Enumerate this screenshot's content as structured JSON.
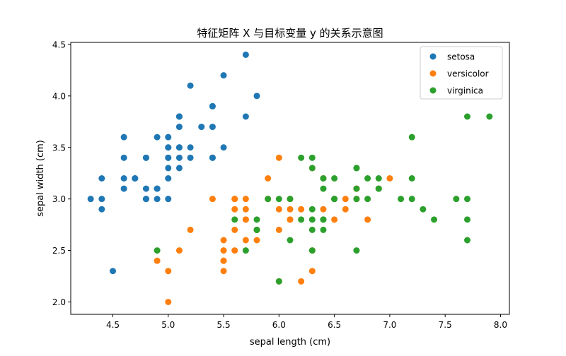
{
  "chart_data": {
    "type": "scatter",
    "title": "特征矩阵 X 与目标变量 y 的关系示意图",
    "xlabel": "sepal length (cm)",
    "ylabel": "sepal width (cm)",
    "xlim": [
      4.12,
      8.08
    ],
    "ylim": [
      1.88,
      4.52
    ],
    "xticks": [
      4.5,
      5.0,
      5.5,
      6.0,
      6.5,
      7.0,
      7.5,
      8.0
    ],
    "yticks": [
      2.0,
      2.5,
      3.0,
      3.5,
      4.0,
      4.5
    ],
    "grid": false,
    "legend_position": "top-right",
    "series": [
      {
        "name": "setosa",
        "color": "#1f77b4",
        "points": [
          [
            5.1,
            3.5
          ],
          [
            4.9,
            3.0
          ],
          [
            4.7,
            3.2
          ],
          [
            4.6,
            3.1
          ],
          [
            5.0,
            3.6
          ],
          [
            5.4,
            3.9
          ],
          [
            4.6,
            3.4
          ],
          [
            5.0,
            3.4
          ],
          [
            4.4,
            2.9
          ],
          [
            4.9,
            3.1
          ],
          [
            5.4,
            3.7
          ],
          [
            4.8,
            3.4
          ],
          [
            4.8,
            3.0
          ],
          [
            4.3,
            3.0
          ],
          [
            5.8,
            4.0
          ],
          [
            5.7,
            4.4
          ],
          [
            5.4,
            3.9
          ],
          [
            5.1,
            3.5
          ],
          [
            5.7,
            3.8
          ],
          [
            5.1,
            3.8
          ],
          [
            5.4,
            3.4
          ],
          [
            5.1,
            3.7
          ],
          [
            4.6,
            3.6
          ],
          [
            5.1,
            3.3
          ],
          [
            4.8,
            3.4
          ],
          [
            5.0,
            3.0
          ],
          [
            5.0,
            3.4
          ],
          [
            5.2,
            3.5
          ],
          [
            5.2,
            3.4
          ],
          [
            4.7,
            3.2
          ],
          [
            4.8,
            3.1
          ],
          [
            5.4,
            3.4
          ],
          [
            5.2,
            4.1
          ],
          [
            5.5,
            4.2
          ],
          [
            4.9,
            3.1
          ],
          [
            5.0,
            3.2
          ],
          [
            5.5,
            3.5
          ],
          [
            4.9,
            3.6
          ],
          [
            4.4,
            3.0
          ],
          [
            5.1,
            3.4
          ],
          [
            5.0,
            3.5
          ],
          [
            4.5,
            2.3
          ],
          [
            4.4,
            3.2
          ],
          [
            5.0,
            3.5
          ],
          [
            5.1,
            3.8
          ],
          [
            4.8,
            3.0
          ],
          [
            5.1,
            3.8
          ],
          [
            4.6,
            3.2
          ],
          [
            5.3,
            3.7
          ],
          [
            5.0,
            3.3
          ]
        ]
      },
      {
        "name": "versicolor",
        "color": "#ff7f0e",
        "points": [
          [
            7.0,
            3.2
          ],
          [
            6.4,
            3.2
          ],
          [
            6.9,
            3.1
          ],
          [
            5.5,
            2.3
          ],
          [
            6.5,
            2.8
          ],
          [
            5.7,
            2.8
          ],
          [
            6.3,
            3.3
          ],
          [
            4.9,
            2.4
          ],
          [
            6.6,
            2.9
          ],
          [
            5.2,
            2.7
          ],
          [
            5.0,
            2.0
          ],
          [
            5.9,
            3.0
          ],
          [
            6.0,
            2.2
          ],
          [
            6.1,
            2.9
          ],
          [
            5.6,
            2.9
          ],
          [
            6.7,
            3.1
          ],
          [
            5.6,
            3.0
          ],
          [
            5.8,
            2.7
          ],
          [
            6.2,
            2.2
          ],
          [
            5.6,
            2.5
          ],
          [
            5.9,
            3.2
          ],
          [
            6.1,
            2.8
          ],
          [
            6.3,
            2.5
          ],
          [
            6.1,
            2.8
          ],
          [
            6.4,
            2.9
          ],
          [
            6.6,
            3.0
          ],
          [
            6.8,
            2.8
          ],
          [
            6.7,
            3.0
          ],
          [
            6.0,
            2.9
          ],
          [
            5.7,
            2.6
          ],
          [
            5.5,
            2.4
          ],
          [
            5.5,
            2.4
          ],
          [
            5.8,
            2.7
          ],
          [
            6.0,
            2.7
          ],
          [
            5.4,
            3.0
          ],
          [
            6.0,
            3.4
          ],
          [
            6.7,
            3.1
          ],
          [
            6.3,
            2.3
          ],
          [
            5.6,
            3.0
          ],
          [
            5.5,
            2.5
          ],
          [
            5.5,
            2.6
          ],
          [
            6.1,
            3.0
          ],
          [
            5.8,
            2.6
          ],
          [
            5.0,
            2.3
          ],
          [
            5.6,
            2.7
          ],
          [
            5.7,
            3.0
          ],
          [
            5.7,
            2.9
          ],
          [
            6.2,
            2.9
          ],
          [
            5.1,
            2.5
          ],
          [
            5.7,
            2.8
          ]
        ]
      },
      {
        "name": "virginica",
        "color": "#2ca02c",
        "points": [
          [
            6.3,
            3.3
          ],
          [
            5.8,
            2.7
          ],
          [
            7.1,
            3.0
          ],
          [
            6.3,
            2.9
          ],
          [
            6.5,
            3.0
          ],
          [
            7.6,
            3.0
          ],
          [
            4.9,
            2.5
          ],
          [
            7.3,
            2.9
          ],
          [
            6.7,
            2.5
          ],
          [
            7.2,
            3.6
          ],
          [
            6.5,
            3.2
          ],
          [
            6.4,
            2.7
          ],
          [
            6.8,
            3.0
          ],
          [
            5.7,
            2.5
          ],
          [
            5.8,
            2.8
          ],
          [
            6.4,
            3.2
          ],
          [
            6.5,
            3.0
          ],
          [
            7.7,
            3.8
          ],
          [
            7.7,
            2.6
          ],
          [
            6.0,
            2.2
          ],
          [
            6.9,
            3.2
          ],
          [
            5.6,
            2.8
          ],
          [
            7.7,
            2.8
          ],
          [
            6.3,
            2.7
          ],
          [
            6.7,
            3.3
          ],
          [
            7.2,
            3.2
          ],
          [
            6.2,
            2.8
          ],
          [
            6.1,
            3.0
          ],
          [
            6.4,
            2.8
          ],
          [
            7.2,
            3.0
          ],
          [
            7.4,
            2.8
          ],
          [
            7.9,
            3.8
          ],
          [
            6.4,
            2.8
          ],
          [
            6.3,
            2.8
          ],
          [
            6.1,
            2.6
          ],
          [
            7.7,
            3.0
          ],
          [
            6.3,
            3.4
          ],
          [
            6.4,
            3.1
          ],
          [
            6.0,
            3.0
          ],
          [
            6.9,
            3.1
          ],
          [
            6.7,
            3.1
          ],
          [
            6.9,
            3.1
          ],
          [
            5.8,
            2.7
          ],
          [
            6.8,
            3.2
          ],
          [
            6.7,
            3.3
          ],
          [
            6.7,
            3.0
          ],
          [
            6.3,
            2.5
          ],
          [
            6.5,
            3.0
          ],
          [
            6.2,
            3.4
          ],
          [
            5.9,
            3.0
          ]
        ]
      }
    ]
  }
}
